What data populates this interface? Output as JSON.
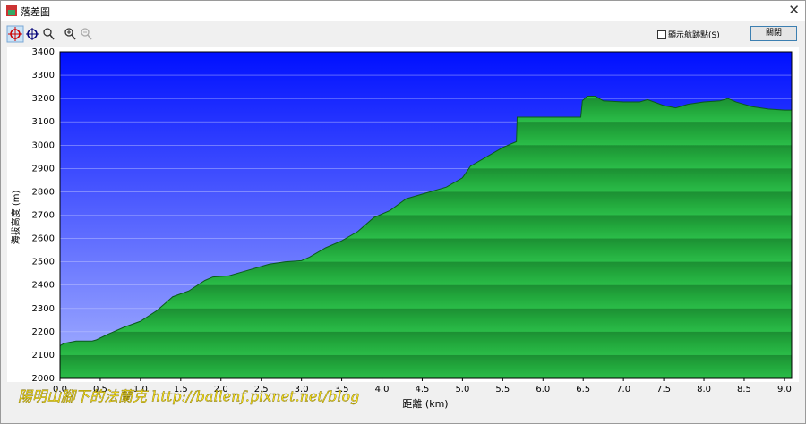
{
  "window": {
    "title": "落差圖",
    "checkbox": "顯示航跡點(S)",
    "button": "關閉"
  },
  "watermark": "陽明山腳下的法蘭克 http://ballenf.pixnet.net/blog",
  "chart_data": {
    "type": "area",
    "ylabel": "海拔高度 (m)",
    "xlabel": "距離 (km)",
    "color": "#22a83c",
    "xlim": [
      0,
      9.09
    ],
    "ylim": [
      2000,
      3400
    ],
    "xticks": [
      {
        "value": 0,
        "label": "0.0"
      },
      0.5,
      {
        "value": 1,
        "label": "1.0"
      },
      1.5,
      {
        "value": 2,
        "label": "2.0"
      },
      2.5,
      {
        "value": 3,
        "label": "3.0"
      },
      3.5,
      {
        "value": 4,
        "label": "4.0"
      },
      4.5,
      {
        "value": 5,
        "label": "5.0"
      },
      5.5,
      {
        "value": 6,
        "label": "6.0"
      },
      6.5,
      {
        "value": 7,
        "label": "7.0"
      },
      7.5,
      {
        "value": 8,
        "label": "8.0"
      },
      8.5,
      {
        "value": 9,
        "label": "9.0"
      }
    ],
    "yticks": [
      2000,
      2100,
      2200,
      2300,
      2400,
      2500,
      2600,
      2700,
      2800,
      2900,
      3000,
      3100,
      3200,
      3300,
      3400
    ],
    "grid": true,
    "x": [
      0,
      0.05,
      0.2,
      0.4,
      0.45,
      0.6,
      0.8,
      1.0,
      1.2,
      1.3,
      1.4,
      1.6,
      1.8,
      1.9,
      2.1,
      2.3,
      2.6,
      2.8,
      3.0,
      3.1,
      3.3,
      3.5,
      3.7,
      3.9,
      4.1,
      4.3,
      4.5,
      4.8,
      5.0,
      5.1,
      5.3,
      5.5,
      5.6,
      5.67,
      5.68,
      6.47,
      6.49,
      6.55,
      6.65,
      6.75,
      7.0,
      7.2,
      7.3,
      7.5,
      7.65,
      7.8,
      8.0,
      8.2,
      8.3,
      8.4,
      8.6,
      8.8,
      9.0,
      9.09
    ],
    "values": [
      2140,
      2150,
      2160,
      2160,
      2165,
      2190,
      2220,
      2245,
      2290,
      2320,
      2350,
      2375,
      2420,
      2435,
      2440,
      2460,
      2490,
      2500,
      2505,
      2520,
      2560,
      2590,
      2630,
      2690,
      2720,
      2770,
      2790,
      2820,
      2860,
      2910,
      2950,
      2990,
      3005,
      3015,
      3120,
      3120,
      3190,
      3210,
      3210,
      3190,
      3185,
      3185,
      3195,
      3170,
      3160,
      3175,
      3185,
      3190,
      3200,
      3185,
      3165,
      3155,
      3150,
      3150
    ]
  }
}
